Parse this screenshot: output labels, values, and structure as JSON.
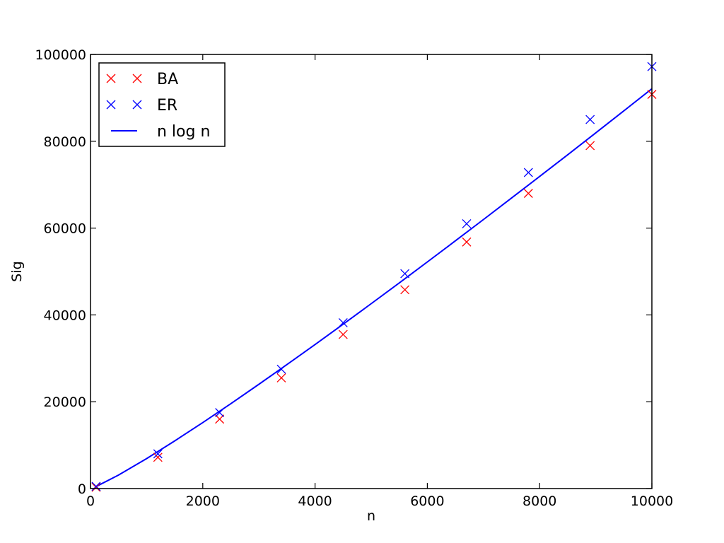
{
  "chart_data": {
    "type": "scatter",
    "title": "",
    "xlabel": "n",
    "ylabel": "Sig",
    "xlim": [
      0,
      10000
    ],
    "ylim": [
      0,
      100000
    ],
    "xticks": [
      0,
      2000,
      4000,
      6000,
      8000,
      10000
    ],
    "yticks": [
      0,
      20000,
      40000,
      60000,
      80000,
      100000
    ],
    "xtick_labels": [
      "0",
      "2000",
      "4000",
      "6000",
      "8000",
      "10000"
    ],
    "ytick_labels": [
      "0",
      "20000",
      "40000",
      "60000",
      "80000",
      "100000"
    ],
    "grid": false,
    "legend_position": "top-left",
    "series": [
      {
        "name": "BA",
        "kind": "scatter",
        "marker": "x",
        "color": "#ff0000",
        "x": [
          100,
          1200,
          2300,
          3400,
          4500,
          5600,
          6700,
          7800,
          8900,
          10000
        ],
        "y": [
          300,
          7200,
          16000,
          25500,
          35500,
          45800,
          56800,
          68000,
          79000,
          90800
        ]
      },
      {
        "name": "ER",
        "kind": "scatter",
        "marker": "x",
        "color": "#0000ff",
        "x": [
          100,
          1200,
          2300,
          3400,
          4500,
          5600,
          6700,
          7800,
          8900,
          10000
        ],
        "y": [
          500,
          8000,
          17500,
          27500,
          38200,
          49500,
          61000,
          72800,
          85000,
          97200
        ]
      },
      {
        "name": "n log n",
        "kind": "line",
        "color": "#0000ff",
        "x": [
          100,
          500,
          1000,
          1500,
          2000,
          2500,
          3000,
          3500,
          4000,
          4500,
          5000,
          5500,
          6000,
          6500,
          7000,
          7500,
          8000,
          8500,
          9000,
          9500,
          10000
        ],
        "y": [
          461,
          3108,
          6908,
          10970,
          15202,
          19560,
          24019,
          28565,
          33176,
          37857,
          42586,
          47362,
          52196,
          57065,
          61975,
          66929,
          71897,
          76893,
          81946,
          86997,
          92103
        ]
      }
    ]
  }
}
